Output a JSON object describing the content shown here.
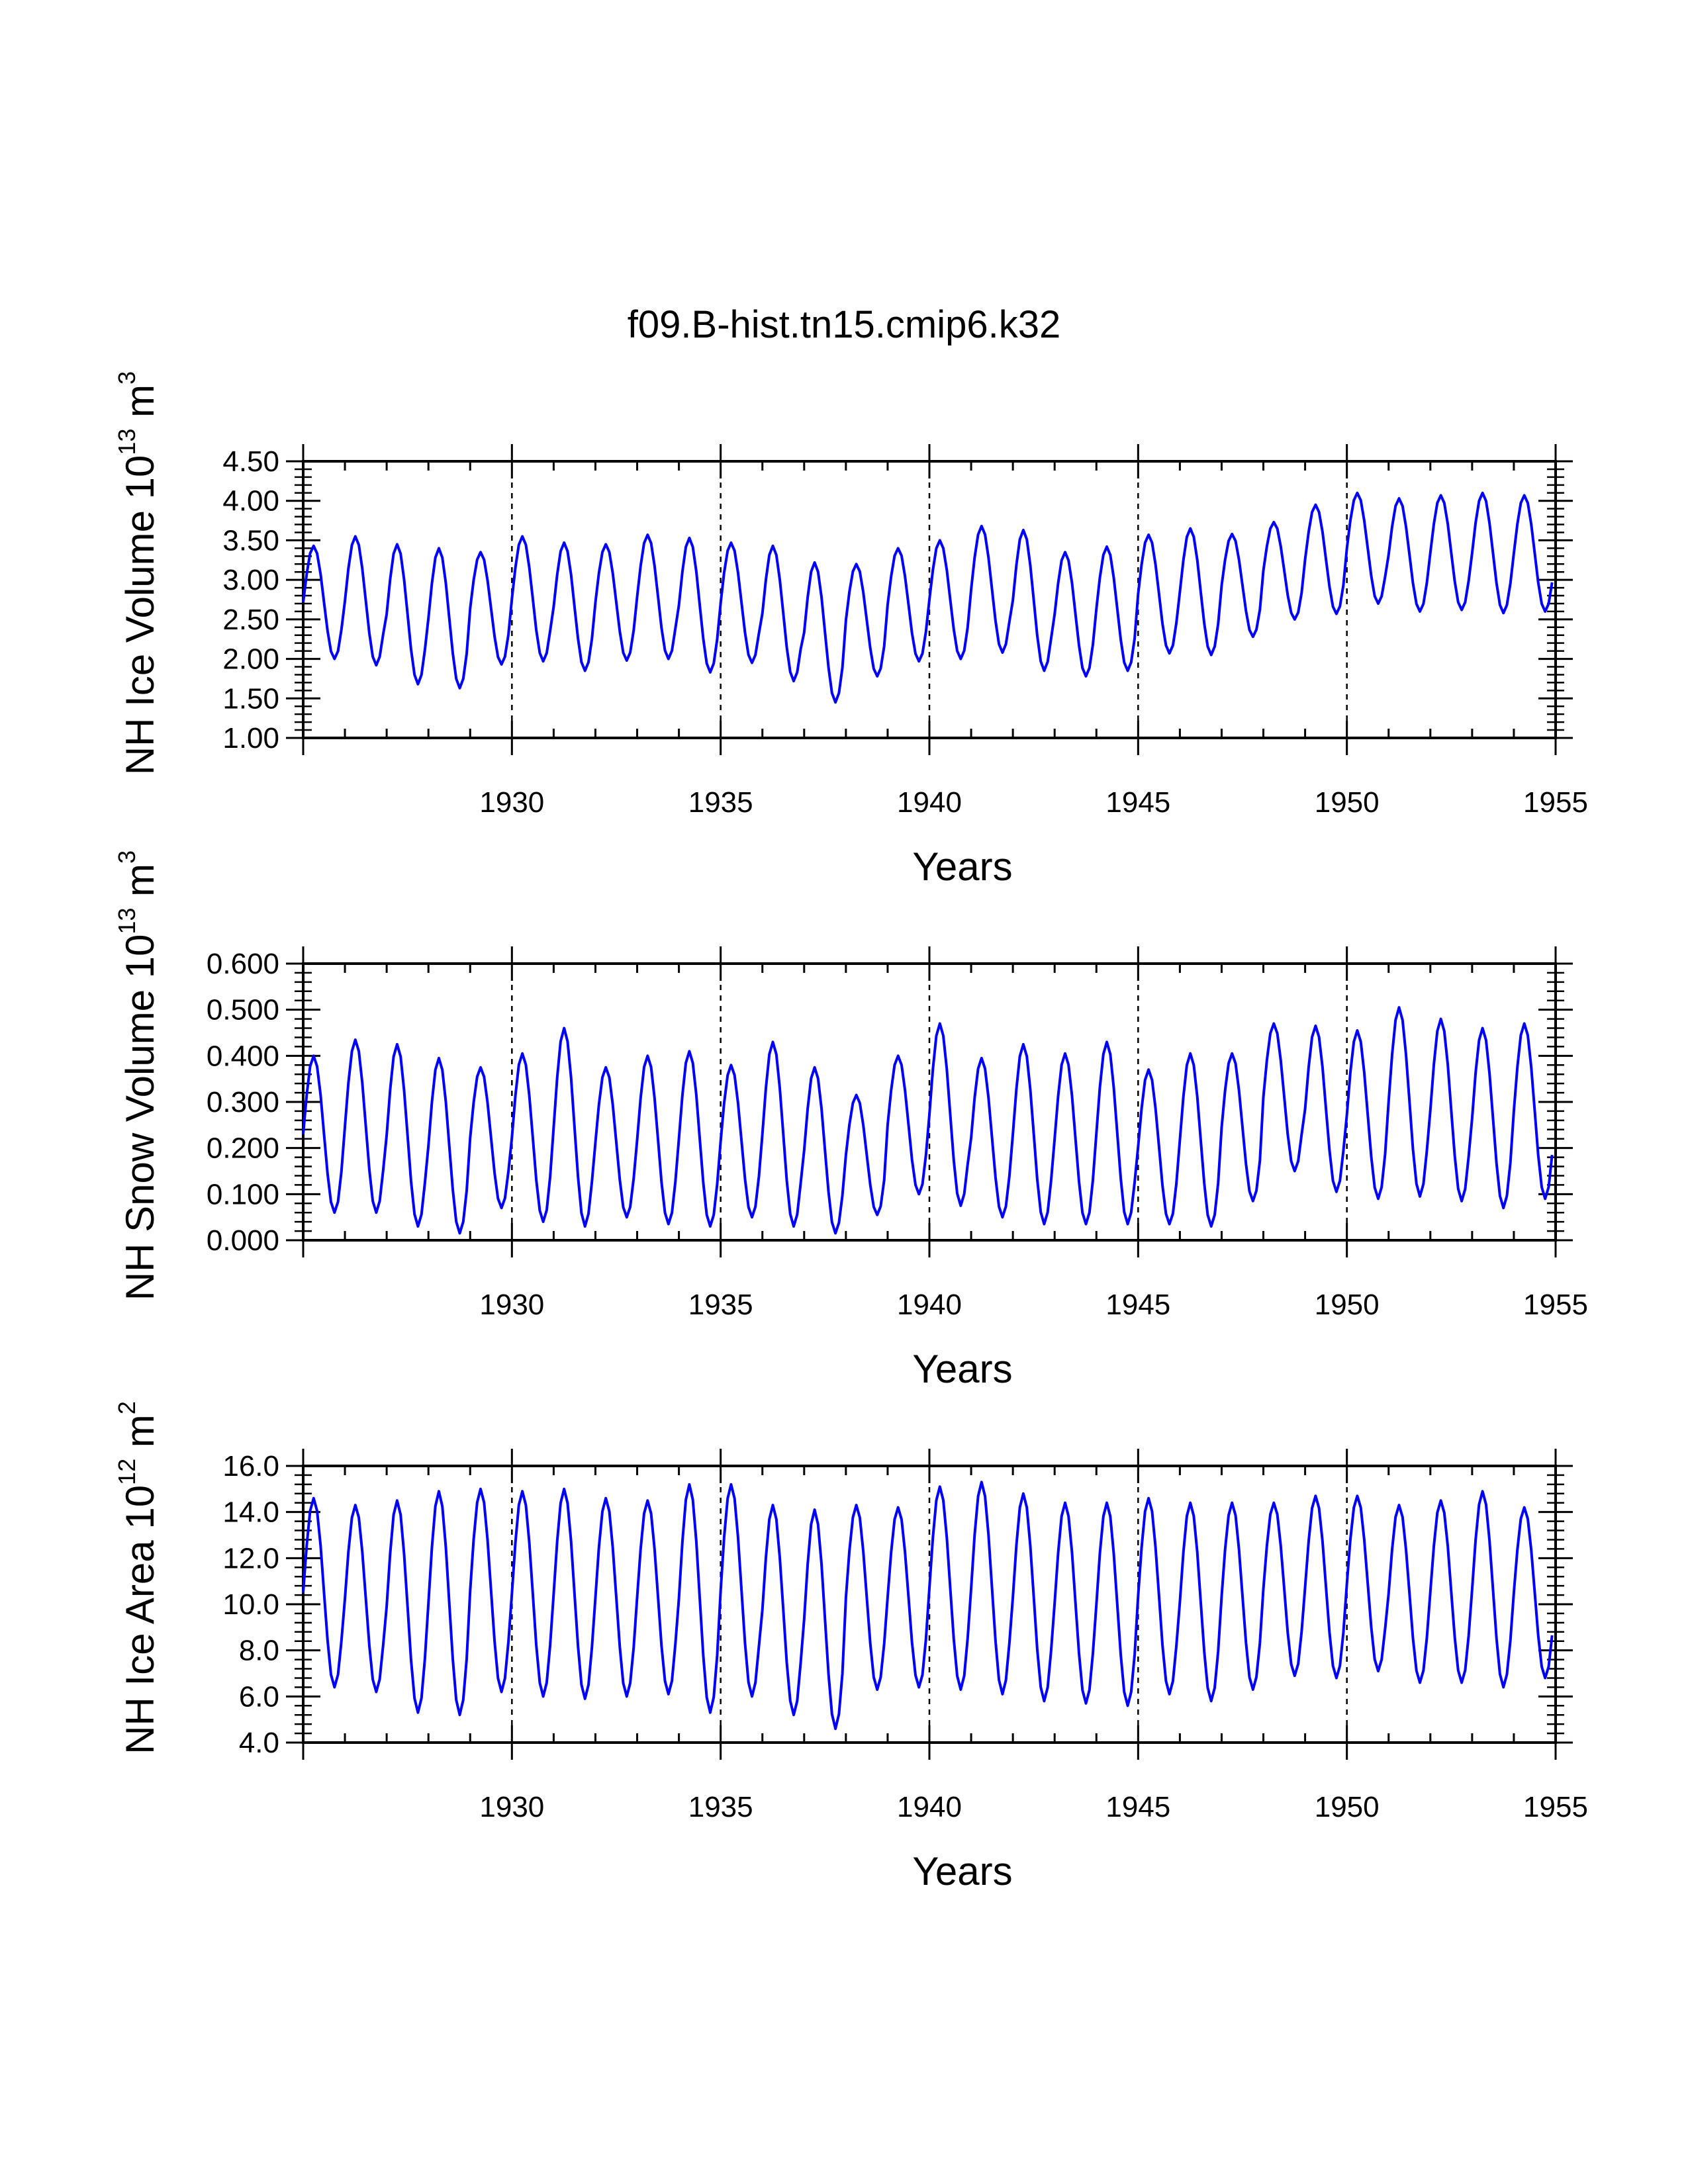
{
  "title": "f09.B-hist.tn15.cmip6.k32",
  "chart_data": [
    {
      "type": "line",
      "name": "ice-volume",
      "ylabel_parts": [
        "NH Ice Volume 10",
        "13",
        " m",
        "3"
      ],
      "xlabel": "Years",
      "xlim": [
        1925.0,
        1955.0
      ],
      "ylim": [
        1.0,
        4.5
      ],
      "xticks": [
        "1930",
        "1935",
        "1940",
        "1945",
        "1950",
        "1955"
      ],
      "yticks": [
        "1.00",
        "1.50",
        "2.00",
        "2.50",
        "3.00",
        "3.50",
        "4.00",
        "4.50"
      ],
      "vlines": [
        1930,
        1935,
        1940,
        1945,
        1950
      ],
      "line_color": "#0000ff",
      "series": {
        "start_year": 1925.0,
        "step": 0.0833,
        "annual_max": [
          3.43,
          3.55,
          3.45,
          3.4,
          3.35,
          3.55,
          3.47,
          3.45,
          3.57,
          3.53,
          3.47,
          3.43,
          3.22,
          3.2,
          3.4,
          3.5,
          3.68,
          3.63,
          3.35,
          3.42,
          3.57,
          3.65,
          3.58,
          3.73,
          3.95,
          4.1,
          4.03,
          4.07,
          4.1,
          4.07
        ],
        "annual_min": [
          2.0,
          1.92,
          1.68,
          1.63,
          1.93,
          1.97,
          1.85,
          1.98,
          2.0,
          1.83,
          1.95,
          1.72,
          1.45,
          1.78,
          1.97,
          2.0,
          2.08,
          1.85,
          1.78,
          1.85,
          2.07,
          2.05,
          2.28,
          2.5,
          2.57,
          2.7,
          2.6,
          2.62,
          2.58,
          2.6
        ]
      }
    },
    {
      "type": "line",
      "name": "snow-volume",
      "ylabel_parts": [
        "NH Snow Volume 10",
        "13",
        " m",
        "3"
      ],
      "xlabel": "Years",
      "xlim": [
        1925.0,
        1955.0
      ],
      "ylim": [
        0.0,
        0.6
      ],
      "xticks": [
        "1930",
        "1935",
        "1940",
        "1945",
        "1950",
        "1955"
      ],
      "yticks": [
        "0.000",
        "0.100",
        "0.200",
        "0.300",
        "0.400",
        "0.500",
        "0.600"
      ],
      "vlines": [
        1930,
        1935,
        1940,
        1945,
        1950
      ],
      "line_color": "#0000ff",
      "series": {
        "start_year": 1925.0,
        "step": 0.0833,
        "annual_max": [
          0.4,
          0.435,
          0.425,
          0.395,
          0.375,
          0.405,
          0.46,
          0.375,
          0.4,
          0.41,
          0.38,
          0.43,
          0.375,
          0.315,
          0.4,
          0.47,
          0.395,
          0.425,
          0.405,
          0.43,
          0.37,
          0.405,
          0.405,
          0.47,
          0.465,
          0.455,
          0.505,
          0.48,
          0.46,
          0.47
        ],
        "annual_min": [
          0.06,
          0.06,
          0.03,
          0.015,
          0.07,
          0.04,
          0.03,
          0.05,
          0.035,
          0.03,
          0.05,
          0.03,
          0.015,
          0.055,
          0.1,
          0.075,
          0.05,
          0.035,
          0.035,
          0.035,
          0.035,
          0.03,
          0.085,
          0.15,
          0.105,
          0.09,
          0.095,
          0.085,
          0.07,
          0.09
        ]
      }
    },
    {
      "type": "line",
      "name": "ice-area",
      "ylabel_parts": [
        "NH Ice Area 10",
        "12",
        " m",
        "2"
      ],
      "xlabel": "Years",
      "xlim": [
        1925.0,
        1955.0
      ],
      "ylim": [
        4.0,
        16.0
      ],
      "xticks": [
        "1930",
        "1935",
        "1940",
        "1945",
        "1950",
        "1955"
      ],
      "yticks": [
        "4.0",
        "6.0",
        "8.0",
        "10.0",
        "12.0",
        "14.0",
        "16.0"
      ],
      "vlines": [
        1930,
        1935,
        1940,
        1945,
        1950
      ],
      "line_color": "#0000ff",
      "series": {
        "start_year": 1925.0,
        "step": 0.0833,
        "annual_max": [
          14.6,
          14.3,
          14.5,
          14.9,
          15.0,
          14.9,
          15.0,
          14.6,
          14.5,
          15.2,
          15.2,
          14.3,
          14.1,
          14.3,
          14.2,
          15.1,
          15.3,
          14.8,
          14.4,
          14.4,
          14.6,
          14.4,
          14.4,
          14.4,
          14.7,
          14.7,
          14.3,
          14.5,
          14.9,
          14.2
        ],
        "annual_min": [
          6.4,
          6.2,
          5.3,
          5.2,
          6.2,
          6.0,
          5.9,
          6.0,
          6.1,
          5.3,
          6.0,
          5.2,
          4.6,
          6.3,
          6.4,
          6.3,
          6.1,
          5.8,
          5.7,
          5.6,
          6.1,
          5.8,
          6.3,
          6.9,
          6.8,
          7.1,
          6.6,
          6.6,
          6.4,
          6.8
        ]
      }
    }
  ]
}
